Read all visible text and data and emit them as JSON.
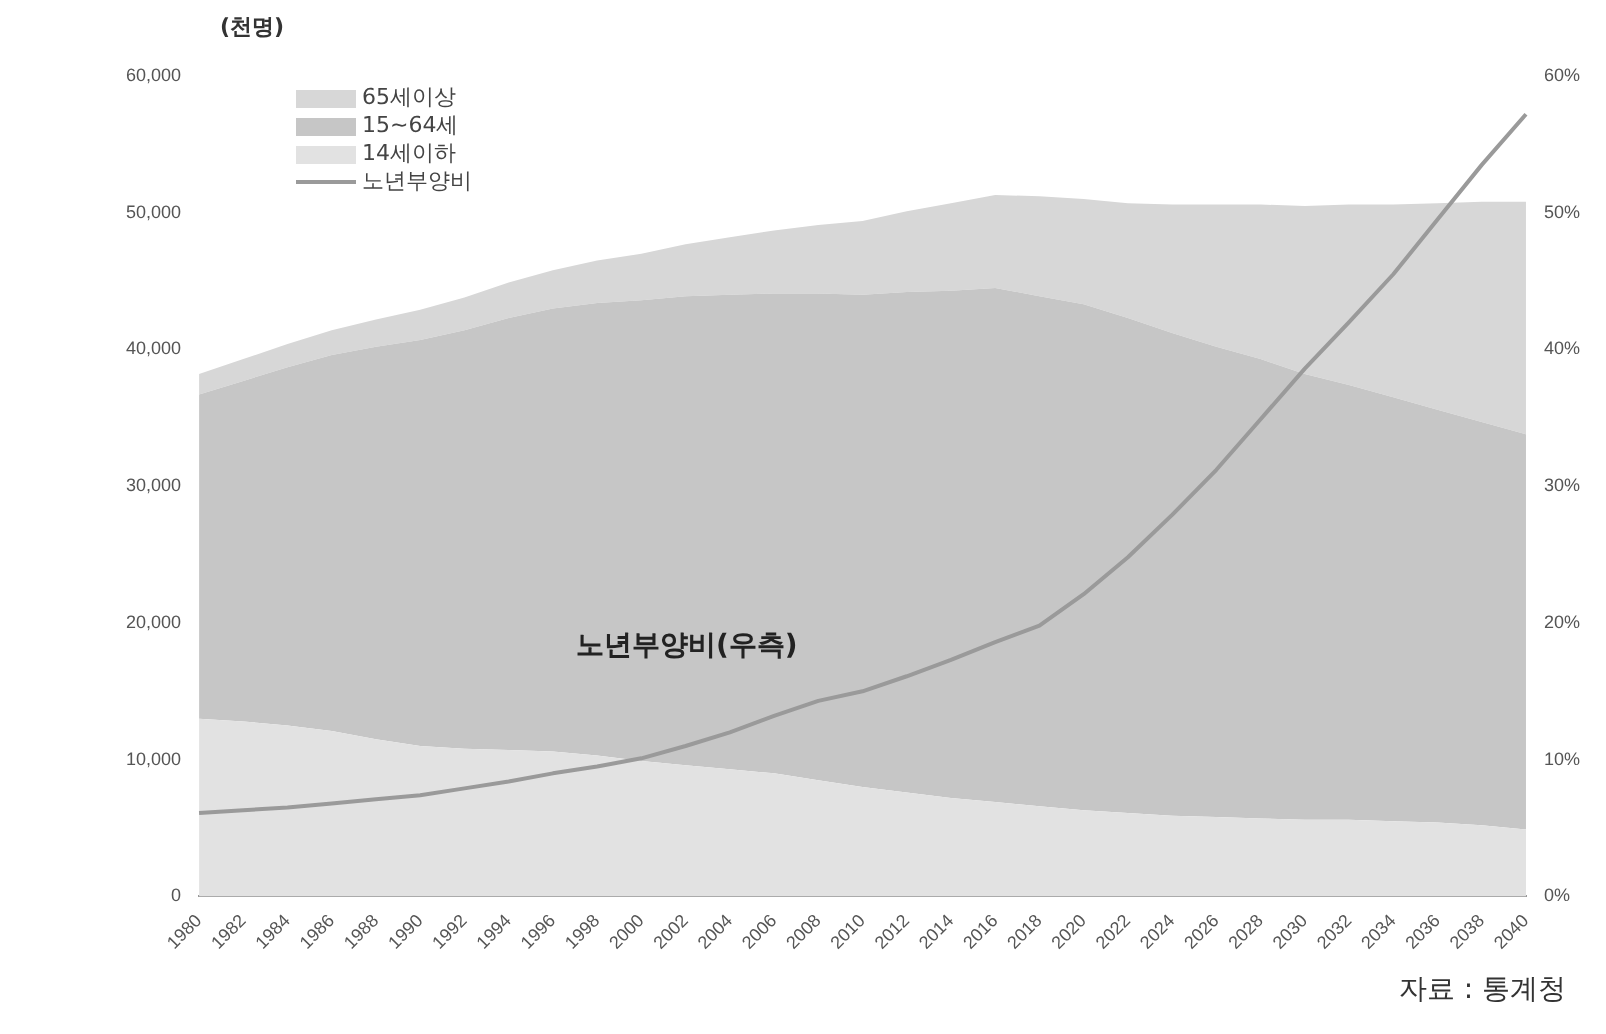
{
  "chart_data": {
    "type": "area",
    "stacked": true,
    "ylabel": "(천명)",
    "categories": [
      "1980",
      "1982",
      "1984",
      "1986",
      "1988",
      "1990",
      "1992",
      "1994",
      "1996",
      "1998",
      "2000",
      "2002",
      "2004",
      "2006",
      "2008",
      "2010",
      "2012",
      "2014",
      "2016",
      "2018",
      "2020",
      "2022",
      "2024",
      "2026",
      "2028",
      "2030",
      "2032",
      "2034",
      "2036",
      "2038",
      "2040"
    ],
    "series": [
      {
        "name": "14세이하",
        "color": "#e2e2e2",
        "values": [
          13000,
          12800,
          12500,
          12100,
          11500,
          11000,
          10800,
          10700,
          10600,
          10300,
          9900,
          9600,
          9300,
          9000,
          8500,
          8000,
          7600,
          7200,
          6900,
          6600,
          6300,
          6100,
          5900,
          5800,
          5700,
          5600,
          5600,
          5500,
          5400,
          5200,
          4900
        ]
      },
      {
        "name": "15~64세",
        "color": "#c6c6c6",
        "values": [
          23700,
          24900,
          26200,
          27500,
          28700,
          29700,
          30600,
          31600,
          32400,
          33100,
          33700,
          34300,
          34700,
          35100,
          35600,
          36000,
          36600,
          37100,
          37600,
          37300,
          37000,
          36200,
          35300,
          34400,
          33600,
          32600,
          31800,
          31000,
          30200,
          29500,
          28900
        ]
      },
      {
        "name": "65세이상",
        "color": "#d7d7d7",
        "values": [
          1500,
          1600,
          1700,
          1800,
          2000,
          2200,
          2400,
          2600,
          2800,
          3100,
          3400,
          3800,
          4200,
          4600,
          5000,
          5400,
          5900,
          6400,
          6800,
          7300,
          7700,
          8400,
          9400,
          10400,
          11300,
          12300,
          13200,
          14100,
          15100,
          16100,
          17000
        ]
      },
      {
        "name": "노년부양비",
        "type": "line",
        "axis": "y2",
        "color": "#9a9a9a",
        "values": [
          6.1,
          6.3,
          6.5,
          6.8,
          7.1,
          7.4,
          7.9,
          8.4,
          9.0,
          9.5,
          10.1,
          11.0,
          12.0,
          13.2,
          14.3,
          15.0,
          16.1,
          17.3,
          18.6,
          19.8,
          22.1,
          24.8,
          27.9,
          31.2,
          34.9,
          38.6,
          42.0,
          45.5,
          49.5,
          53.5,
          57.2
        ]
      }
    ],
    "ylim": [
      0,
      60000
    ],
    "yticks": [
      0,
      {
        "value": 10000,
        "label": "10,000"
      },
      {
        "value": 20000,
        "label": "20,000"
      },
      {
        "value": 30000,
        "label": "30,000"
      },
      {
        "value": 40000,
        "label": "40,000"
      },
      {
        "value": 50000,
        "label": "50,000"
      },
      {
        "value": 60000,
        "label": "60,000"
      }
    ],
    "y2lim": [
      0,
      60
    ],
    "y2ticks": [
      {
        "value": 0,
        "label": "0%"
      },
      {
        "value": 10,
        "label": "10%"
      },
      {
        "value": 20,
        "label": "20%"
      },
      {
        "value": 30,
        "label": "30%"
      },
      {
        "value": 40,
        "label": "40%"
      },
      {
        "value": 50,
        "label": "50%"
      },
      {
        "value": 60,
        "label": "60%"
      }
    ],
    "grid": false,
    "legend": "top left",
    "marker": "none",
    "annotations": [
      "노년부양비(우측)",
      "자료 : 통계청"
    ]
  }
}
